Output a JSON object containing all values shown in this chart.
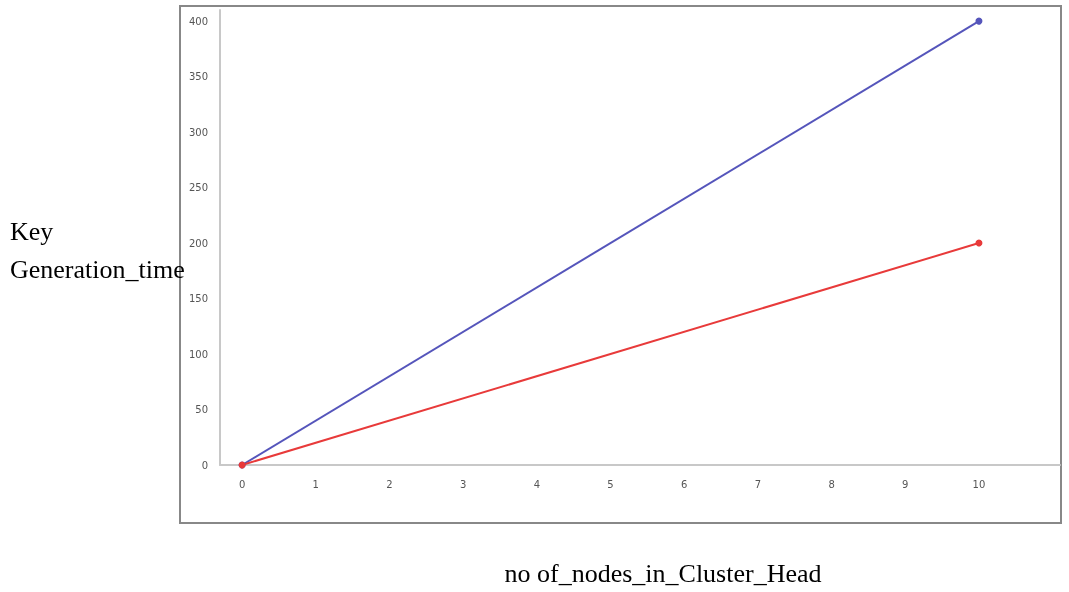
{
  "chart_data": {
    "type": "line",
    "xlabel": "no of_nodes_in_Cluster_Head",
    "ylabel": "Key Generation_time",
    "x": [
      0,
      10
    ],
    "series": [
      {
        "color": "#5555bb",
        "values": [
          0,
          400
        ]
      },
      {
        "color": "#e83a3a",
        "values": [
          0,
          200
        ]
      }
    ],
    "xlim": [
      -0.3,
      11.1
    ],
    "xticks": [
      0,
      1,
      2,
      3,
      4,
      5,
      6,
      7,
      8,
      9,
      10
    ],
    "ylim": [
      0,
      410
    ],
    "yticks": [
      0,
      50,
      100,
      150,
      200,
      250,
      300,
      350,
      400
    ],
    "grid": false,
    "marker": "circle",
    "line_style": "solid"
  }
}
